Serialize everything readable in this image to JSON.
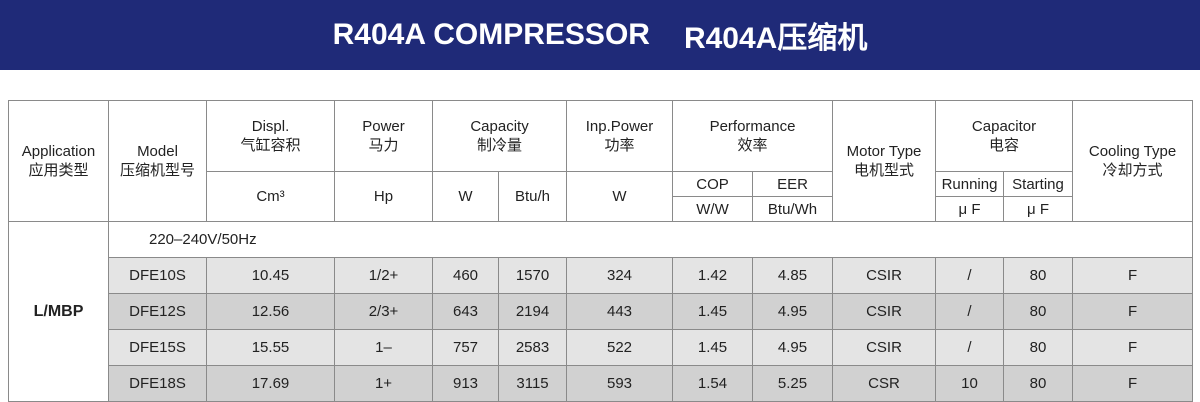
{
  "header": {
    "title_en": "R404A COMPRESSOR",
    "title_zh": "R404A压缩机"
  },
  "table": {
    "head": {
      "application": {
        "en": "Application",
        "zh": "应用类型"
      },
      "model": {
        "en": "Model",
        "zh": "压缩机型号"
      },
      "displ": {
        "en": "Displ.",
        "zh": "气缸容积",
        "unit": "Cm³"
      },
      "power": {
        "en": "Power",
        "zh": "马力",
        "unit": "Hp"
      },
      "capacity": {
        "en": "Capacity",
        "zh": "制冷量",
        "units": [
          "W",
          "Btu/h"
        ]
      },
      "inp_power": {
        "en": "Inp.Power",
        "zh": "功率",
        "unit": "W"
      },
      "performance": {
        "en": "Performance",
        "zh": "效率",
        "subs": [
          "COP",
          "EER"
        ],
        "units": [
          "W/W",
          "Btu/Wh"
        ]
      },
      "motor": {
        "en": "Motor Type",
        "zh": "电机型式"
      },
      "capacitor": {
        "en": "Capacitor",
        "zh": "电容",
        "subs": [
          "Running",
          "Starting"
        ],
        "units": [
          "μ F",
          "μ F"
        ]
      },
      "cooling": {
        "en": "Cooling Type",
        "zh": "冷却方式"
      }
    },
    "application": "L/MBP",
    "voltage": "220–240V/50Hz",
    "rows": [
      [
        "DFE10S",
        10.45,
        "1/2+",
        460,
        1570,
        324,
        1.42,
        4.85,
        "CSIR",
        "/",
        80,
        "F"
      ],
      [
        "DFE12S",
        12.56,
        "2/3+",
        643,
        2194,
        443,
        1.45,
        4.95,
        "CSIR",
        "/",
        80,
        "F"
      ],
      [
        "DFE15S",
        15.55,
        "1–",
        757,
        2583,
        522,
        1.45,
        4.95,
        "CSIR",
        "/",
        80,
        "F"
      ],
      [
        "DFE18S",
        17.69,
        "1+",
        913,
        3115,
        593,
        1.54,
        5.25,
        "CSR",
        10,
        80,
        "F"
      ]
    ]
  }
}
